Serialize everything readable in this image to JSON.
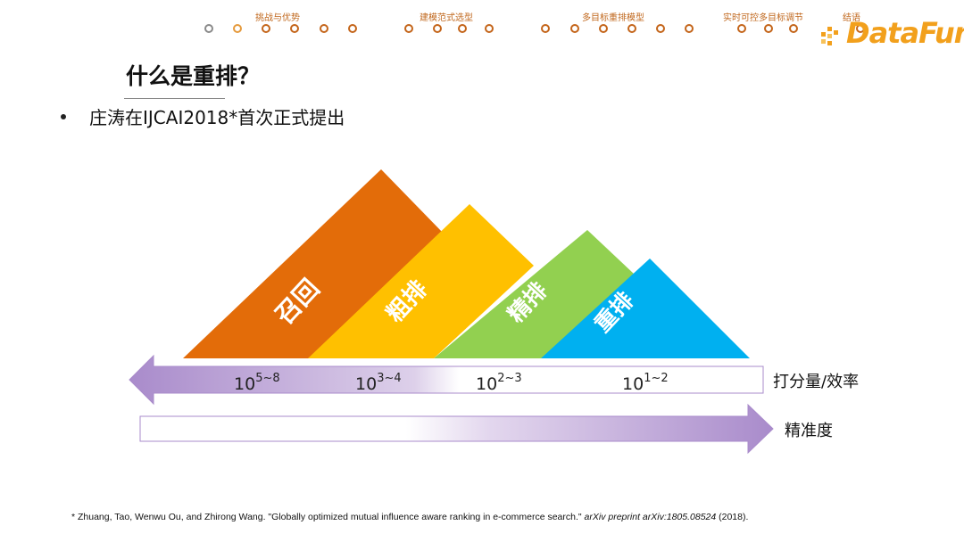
{
  "header": {
    "sections": [
      {
        "label": "挑战与优势"
      },
      {
        "label": "建模范式选型"
      },
      {
        "label": "多目标重排模型"
      },
      {
        "label": "实时可控多目标调节"
      },
      {
        "label": "结语"
      }
    ],
    "logo_text": "DataFun."
  },
  "slide": {
    "title": "什么是重排？",
    "bullet": "庄涛在IJCAI2018*首次正式提出"
  },
  "diagram": {
    "stages": [
      {
        "label": "召回",
        "color": "#e36c09"
      },
      {
        "label": "粗排",
        "color": "#ffc000"
      },
      {
        "label": "精排",
        "color": "#92d050"
      },
      {
        "label": "重排",
        "color": "#00b0f0"
      }
    ],
    "scales": [
      {
        "base": "10",
        "exp": "5~8"
      },
      {
        "base": "10",
        "exp": "3~4"
      },
      {
        "base": "10",
        "exp": "2~3"
      },
      {
        "base": "10",
        "exp": "1~2"
      }
    ],
    "arrow_left_label": "打分量/效率",
    "arrow_right_label": "精准度",
    "arrow_color": "#a98bcb"
  },
  "footnote": {
    "main": "* Zhuang, Tao, Wenwu Ou, and Zhirong Wang. \"Globally optimized mutual influence aware ranking in e-commerce search.\" ",
    "italic": "arXiv preprint arXiv:1805.08524",
    "tail": " (2018)."
  }
}
